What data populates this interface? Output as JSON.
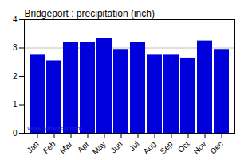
{
  "chart_data": {
    "type": "bar",
    "title": "Bridgeport : precipitation (inch)",
    "categories": [
      "Jan",
      "Feb",
      "Mar",
      "Apr",
      "May",
      "Jun",
      "Jul",
      "Aug",
      "Sep",
      "Oct",
      "Nov",
      "Dec"
    ],
    "values": [
      2.75,
      2.55,
      3.2,
      3.2,
      3.35,
      2.95,
      3.2,
      2.75,
      2.75,
      2.65,
      3.25,
      2.95
    ],
    "color": "#0000dd",
    "ylim": [
      0,
      4
    ],
    "yticks": [
      0,
      1,
      2,
      3,
      4
    ],
    "hline": {
      "y": 3.0,
      "color": "#c0c0c0"
    },
    "annotation": {
      "text": "www.allmetsat.com",
      "color": "#2222cc"
    }
  }
}
